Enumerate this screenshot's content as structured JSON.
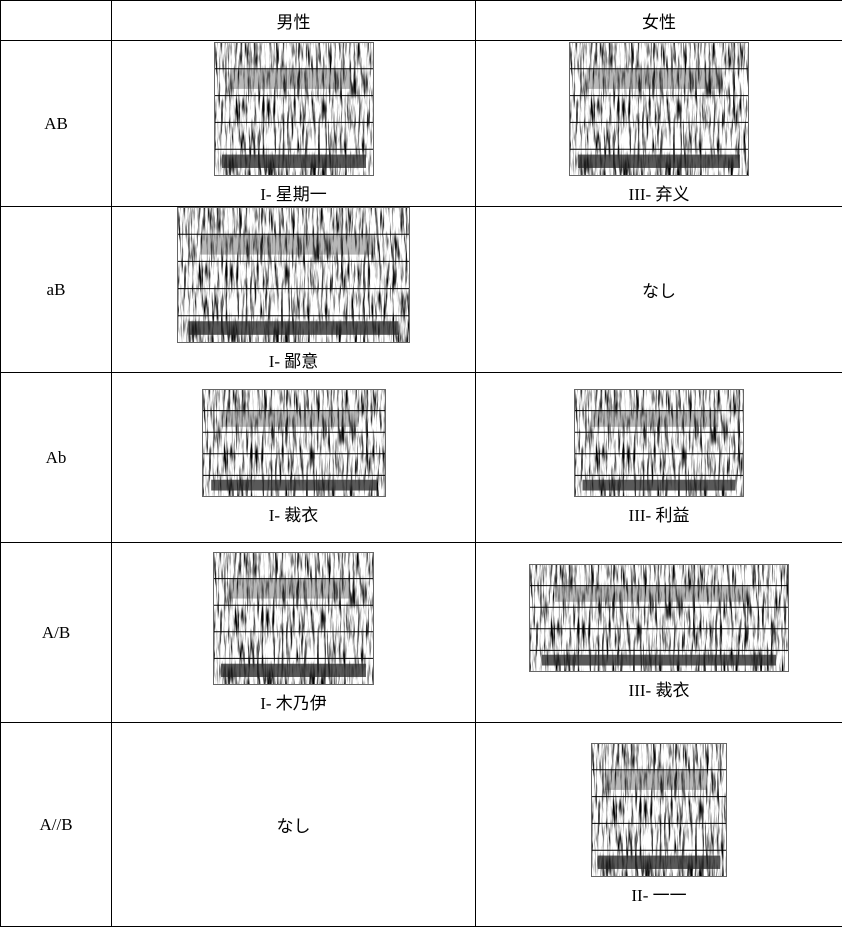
{
  "table": {
    "columns": [
      "男性",
      "女性"
    ],
    "rows": [
      {
        "label": "AB",
        "cells": [
          {
            "caption": "I- 星期一"
          },
          {
            "caption": "III- 弃义"
          }
        ]
      },
      {
        "label": "aB",
        "cells": [
          {
            "caption": "I- 鄙意"
          },
          {
            "text": "なし"
          }
        ]
      },
      {
        "label": "Ab",
        "cells": [
          {
            "caption": "I- 裁衣"
          },
          {
            "caption": "III- 利益"
          }
        ]
      },
      {
        "label": "A/B",
        "cells": [
          {
            "caption": "I- 木乃伊"
          },
          {
            "caption": "III- 裁衣"
          }
        ]
      },
      {
        "label": "A//B",
        "cells": [
          {
            "text": "なし"
          },
          {
            "caption": "II- 一一"
          }
        ]
      }
    ]
  }
}
